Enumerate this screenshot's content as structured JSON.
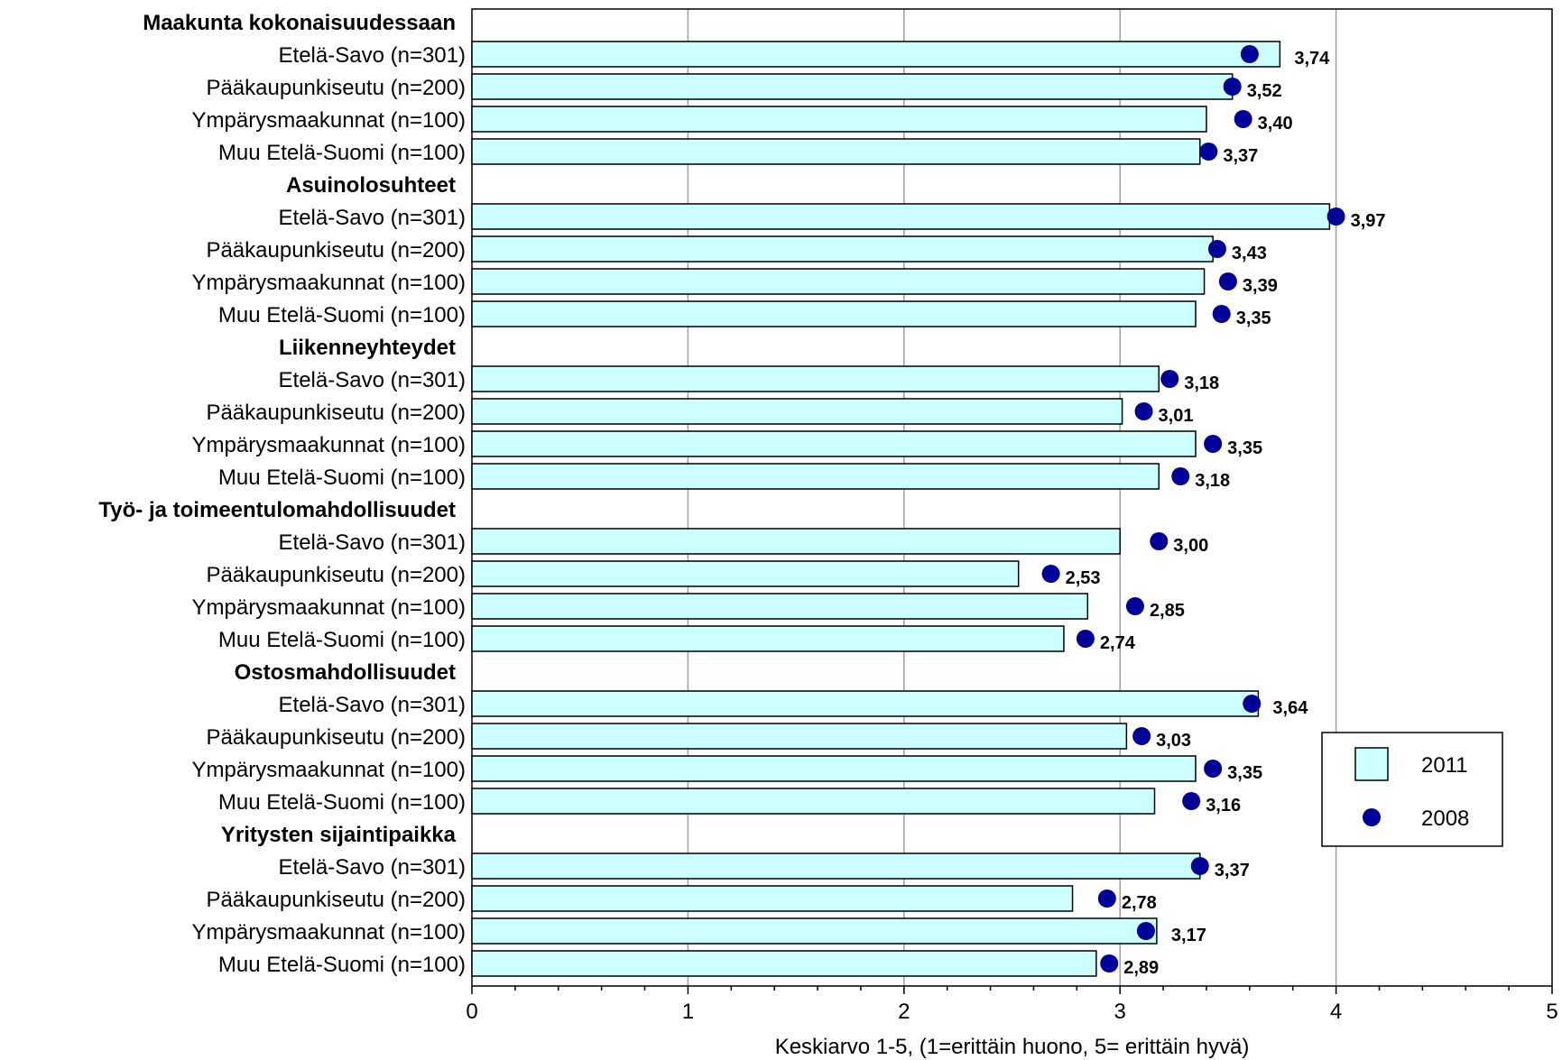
{
  "chart_data": {
    "type": "bar",
    "orientation": "horizontal",
    "xlabel": "Keskiarvo 1-5, (1=erittäin huono, 5= erittäin hyvä)",
    "xlim": [
      0,
      5
    ],
    "xticks": [
      "0",
      "1",
      "2",
      "3",
      "4",
      "5"
    ],
    "grid": "vertical",
    "legend_position": "right",
    "legend": [
      {
        "name": "2011",
        "marker": "bar"
      },
      {
        "name": "2008",
        "marker": "dot"
      }
    ],
    "colors": {
      "bar_2011": "#ccffff",
      "dot_2008": "#000099",
      "grid": "#a0a0a0"
    },
    "groups": [
      {
        "name": "Maakunta kokonaisuudessaan",
        "items": [
          {
            "label": "Etelä-Savo (n=301)",
            "v2011": 3.74,
            "v2008": 3.6,
            "value_label": "3,74"
          },
          {
            "label": "Pääkaupunkiseutu (n=200)",
            "v2011": 3.52,
            "v2008": 3.52,
            "value_label": "3,52"
          },
          {
            "label": "Ympärysmaakunnat (n=100)",
            "v2011": 3.4,
            "v2008": 3.57,
            "value_label": "3,40"
          },
          {
            "label": "Muu Etelä-Suomi (n=100)",
            "v2011": 3.37,
            "v2008": 3.41,
            "value_label": "3,37"
          }
        ]
      },
      {
        "name": "Asuinolosuhteet",
        "items": [
          {
            "label": "Etelä-Savo (n=301)",
            "v2011": 3.97,
            "v2008": 4.0,
            "value_label": "3,97"
          },
          {
            "label": "Pääkaupunkiseutu (n=200)",
            "v2011": 3.43,
            "v2008": 3.45,
            "value_label": "3,43"
          },
          {
            "label": "Ympärysmaakunnat (n=100)",
            "v2011": 3.39,
            "v2008": 3.5,
            "value_label": "3,39"
          },
          {
            "label": "Muu Etelä-Suomi (n=100)",
            "v2011": 3.35,
            "v2008": 3.47,
            "value_label": "3,35"
          }
        ]
      },
      {
        "name": "Liikenneyhteydet",
        "items": [
          {
            "label": "Etelä-Savo (n=301)",
            "v2011": 3.18,
            "v2008": 3.23,
            "value_label": "3,18"
          },
          {
            "label": "Pääkaupunkiseutu (n=200)",
            "v2011": 3.01,
            "v2008": 3.11,
            "value_label": "3,01"
          },
          {
            "label": "Ympärysmaakunnat (n=100)",
            "v2011": 3.35,
            "v2008": 3.43,
            "value_label": "3,35"
          },
          {
            "label": "Muu Etelä-Suomi (n=100)",
            "v2011": 3.18,
            "v2008": 3.28,
            "value_label": "3,18"
          }
        ]
      },
      {
        "name": "Työ- ja toimeentulomahdollisuudet",
        "items": [
          {
            "label": "Etelä-Savo (n=301)",
            "v2011": 3.0,
            "v2008": 3.18,
            "value_label": "3,00"
          },
          {
            "label": "Pääkaupunkiseutu (n=200)",
            "v2011": 2.53,
            "v2008": 2.68,
            "value_label": "2,53"
          },
          {
            "label": "Ympärysmaakunnat (n=100)",
            "v2011": 2.85,
            "v2008": 3.07,
            "value_label": "2,85"
          },
          {
            "label": "Muu Etelä-Suomi (n=100)",
            "v2011": 2.74,
            "v2008": 2.84,
            "value_label": "2,74"
          }
        ]
      },
      {
        "name": "Ostosmahdollisuudet",
        "items": [
          {
            "label": "Etelä-Savo (n=301)",
            "v2011": 3.64,
            "v2008": 3.61,
            "value_label": "3,64"
          },
          {
            "label": "Pääkaupunkiseutu (n=200)",
            "v2011": 3.03,
            "v2008": 3.1,
            "value_label": "3,03"
          },
          {
            "label": "Ympärysmaakunnat (n=100)",
            "v2011": 3.35,
            "v2008": 3.43,
            "value_label": "3,35"
          },
          {
            "label": "Muu Etelä-Suomi (n=100)",
            "v2011": 3.16,
            "v2008": 3.33,
            "value_label": "3,16"
          }
        ]
      },
      {
        "name": "Yritysten sijaintipaikka",
        "items": [
          {
            "label": "Etelä-Savo (n=301)",
            "v2011": 3.37,
            "v2008": 3.37,
            "value_label": "3,37"
          },
          {
            "label": "Pääkaupunkiseutu (n=200)",
            "v2011": 2.78,
            "v2008": 2.94,
            "value_label": "2,78"
          },
          {
            "label": "Ympärysmaakunnat (n=100)",
            "v2011": 3.17,
            "v2008": 3.12,
            "value_label": "3,17"
          },
          {
            "label": "Muu Etelä-Suomi (n=100)",
            "v2011": 2.89,
            "v2008": 2.95,
            "value_label": "2,89"
          }
        ]
      }
    ]
  }
}
